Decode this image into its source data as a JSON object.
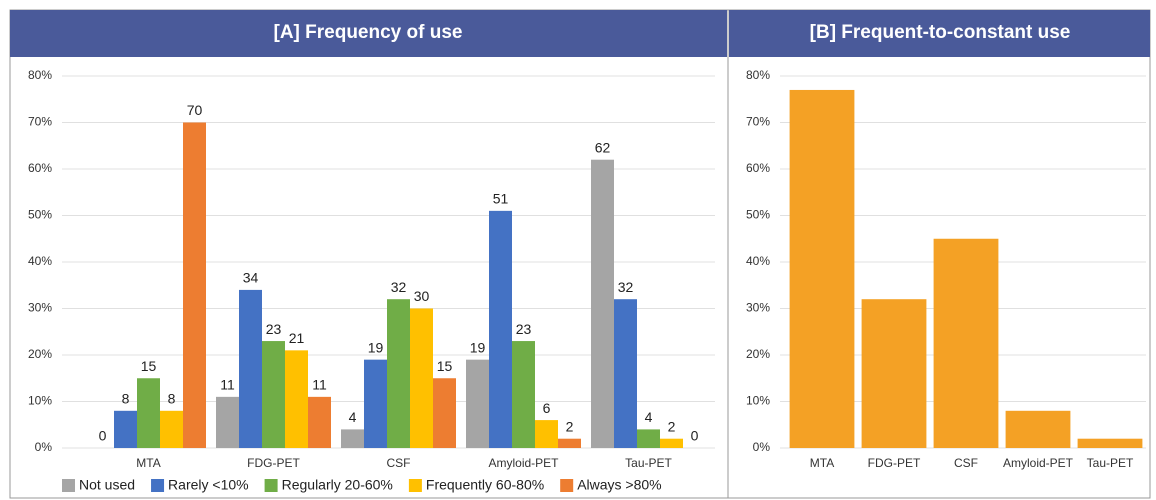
{
  "chart_data": [
    {
      "type": "bar",
      "title": "[A] Frequency of use",
      "categories": [
        "MTA",
        "FDG-PET",
        "CSF",
        "Amyloid-PET",
        "Tau-PET"
      ],
      "series": [
        {
          "name": "Not used",
          "color": "#a5a5a5",
          "values": [
            0,
            11,
            4,
            19,
            62
          ]
        },
        {
          "name": "Rarely <10%",
          "color": "#4472c4",
          "values": [
            8,
            34,
            19,
            51,
            32
          ]
        },
        {
          "name": "Regularly 20-60%",
          "color": "#70ad47",
          "values": [
            15,
            23,
            32,
            23,
            4
          ]
        },
        {
          "name": "Frequently 60-80%",
          "color": "#ffc000",
          "values": [
            8,
            21,
            30,
            6,
            2
          ]
        },
        {
          "name": "Always >80%",
          "color": "#ed7d31",
          "values": [
            70,
            11,
            15,
            2,
            0
          ]
        }
      ],
      "ylim": [
        0,
        80
      ],
      "yticks": [
        {
          "value": 0,
          "label": "0%"
        },
        {
          "value": 10,
          "label": "10%"
        },
        {
          "value": 20,
          "label": "20%"
        },
        {
          "value": 30,
          "label": "30%"
        },
        {
          "value": 40,
          "label": "40%"
        },
        {
          "value": 50,
          "label": "50%"
        },
        {
          "value": 60,
          "label": "60%"
        },
        {
          "value": 70,
          "label": "70%"
        },
        {
          "value": 80,
          "label": "80%"
        }
      ],
      "grid": true,
      "data_labels": true,
      "legend": "bottom"
    },
    {
      "type": "bar",
      "title": "[B] Frequent-to-constant use",
      "categories": [
        "MTA",
        "FDG-PET",
        "CSF",
        "Amyloid-PET",
        "Tau-PET"
      ],
      "values": [
        77,
        32,
        45,
        8,
        2
      ],
      "color": "#f4a125",
      "ylim": [
        0,
        80
      ],
      "yticks": [
        {
          "value": 0,
          "label": "0%"
        },
        {
          "value": 10,
          "label": "10%"
        },
        {
          "value": 20,
          "label": "20%"
        },
        {
          "value": 30,
          "label": "30%"
        },
        {
          "value": 40,
          "label": "40%"
        },
        {
          "value": 50,
          "label": "50%"
        },
        {
          "value": 60,
          "label": "60%"
        },
        {
          "value": 70,
          "label": "70%"
        },
        {
          "value": 80,
          "label": "80%"
        }
      ],
      "grid": true,
      "data_labels": false
    }
  ]
}
